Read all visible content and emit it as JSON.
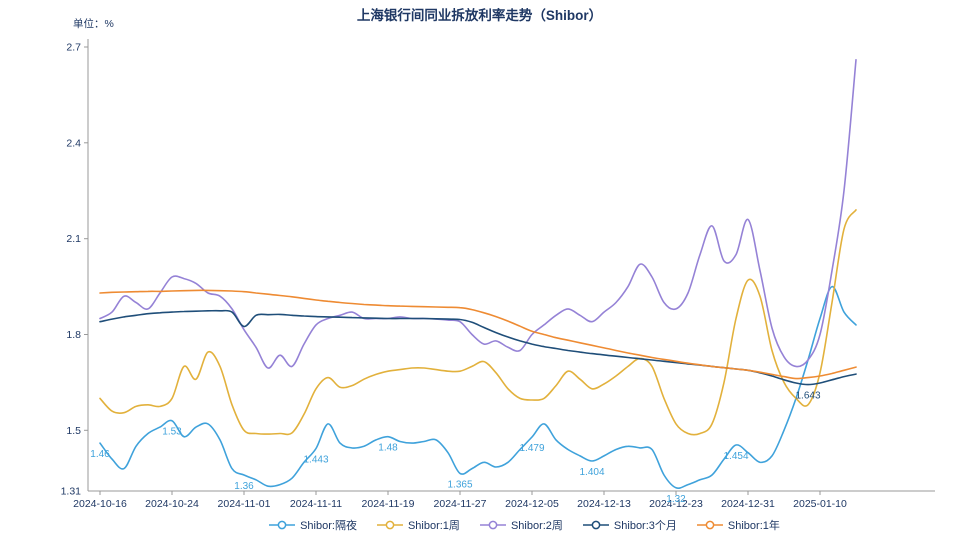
{
  "title": "上海银行间同业拆放利率走势（Shibor）",
  "unit_label": "单位：%",
  "colors": {
    "text": "#1F3864",
    "axis": "#999999",
    "background": "#FFFFFF"
  },
  "chart_data": {
    "type": "line",
    "title": "上海银行间同业拆放利率走势（Shibor）",
    "ylabel": "单位：%",
    "grid": false,
    "legend_position": "bottom",
    "ylim": [
      1.31,
      2.7
    ],
    "y_tick_values": [
      2.7,
      2.4,
      2.1,
      1.8,
      1.5
    ],
    "y_tick_labels": [
      "2.7",
      "2.4",
      "2.1",
      "1.8",
      "1.5"
    ],
    "y_min_label": "1.31",
    "x_tick_every": 6,
    "x_tick_labels": [
      "2024-10-16",
      "2024-10-24",
      "2024-11-01",
      "2024-11-11",
      "2024-11-19",
      "2024-11-27",
      "2024-12-05",
      "2024-12-13",
      "2024-12-23",
      "2024-12-31",
      "2025-01-10"
    ],
    "series": [
      {
        "name": "Shibor:隔夜",
        "color": "#3FA2DB",
        "values": [
          1.46,
          1.41,
          1.38,
          1.45,
          1.49,
          1.51,
          1.53,
          1.48,
          1.51,
          1.52,
          1.47,
          1.38,
          1.36,
          1.345,
          1.325,
          1.33,
          1.35,
          1.4,
          1.443,
          1.52,
          1.46,
          1.445,
          1.45,
          1.47,
          1.48,
          1.465,
          1.46,
          1.465,
          1.47,
          1.43,
          1.365,
          1.38,
          1.4,
          1.385,
          1.4,
          1.44,
          1.479,
          1.52,
          1.47,
          1.44,
          1.42,
          1.404,
          1.42,
          1.44,
          1.45,
          1.445,
          1.44,
          1.36,
          1.32,
          1.33,
          1.345,
          1.36,
          1.41,
          1.454,
          1.43,
          1.4,
          1.42,
          1.5,
          1.6,
          1.72,
          1.85,
          1.95,
          1.87,
          1.83
        ]
      },
      {
        "name": "Shibor:1周",
        "color": "#E2B13C",
        "values": [
          1.6,
          1.56,
          1.555,
          1.575,
          1.58,
          1.575,
          1.6,
          1.7,
          1.66,
          1.745,
          1.7,
          1.58,
          1.5,
          1.49,
          1.488,
          1.49,
          1.492,
          1.55,
          1.63,
          1.665,
          1.635,
          1.64,
          1.66,
          1.675,
          1.685,
          1.69,
          1.695,
          1.695,
          1.69,
          1.685,
          1.685,
          1.7,
          1.715,
          1.68,
          1.63,
          1.6,
          1.595,
          1.6,
          1.64,
          1.685,
          1.66,
          1.63,
          1.645,
          1.67,
          1.7,
          1.725,
          1.7,
          1.6,
          1.52,
          1.49,
          1.49,
          1.52,
          1.65,
          1.85,
          1.97,
          1.92,
          1.75,
          1.65,
          1.6,
          1.58,
          1.68,
          1.9,
          2.13,
          2.19
        ]
      },
      {
        "name": "Shibor:2周",
        "color": "#9582D6",
        "values": [
          1.85,
          1.87,
          1.92,
          1.9,
          1.88,
          1.93,
          1.98,
          1.975,
          1.96,
          1.93,
          1.92,
          1.88,
          1.815,
          1.76,
          1.695,
          1.735,
          1.7,
          1.77,
          1.83,
          1.85,
          1.86,
          1.87,
          1.85,
          1.85,
          1.85,
          1.855,
          1.85,
          1.85,
          1.848,
          1.845,
          1.84,
          1.8,
          1.77,
          1.78,
          1.76,
          1.75,
          1.8,
          1.83,
          1.86,
          1.88,
          1.86,
          1.84,
          1.87,
          1.9,
          1.95,
          2.02,
          1.98,
          1.9,
          1.88,
          1.93,
          2.05,
          2.14,
          2.03,
          2.05,
          2.16,
          2.0,
          1.82,
          1.73,
          1.7,
          1.72,
          1.8,
          2.0,
          2.25,
          2.66
        ]
      },
      {
        "name": "Shibor:3个月",
        "color": "#1F4E79",
        "values": [
          1.84,
          1.848,
          1.855,
          1.86,
          1.865,
          1.868,
          1.87,
          1.872,
          1.873,
          1.874,
          1.874,
          1.87,
          1.825,
          1.86,
          1.862,
          1.863,
          1.86,
          1.858,
          1.856,
          1.855,
          1.854,
          1.853,
          1.852,
          1.851,
          1.85,
          1.85,
          1.85,
          1.85,
          1.849,
          1.848,
          1.847,
          1.838,
          1.822,
          1.806,
          1.792,
          1.78,
          1.77,
          1.762,
          1.756,
          1.75,
          1.745,
          1.74,
          1.736,
          1.732,
          1.728,
          1.724,
          1.72,
          1.716,
          1.712,
          1.708,
          1.704,
          1.7,
          1.696,
          1.692,
          1.688,
          1.68,
          1.67,
          1.658,
          1.648,
          1.643,
          1.648,
          1.658,
          1.668,
          1.676
        ]
      },
      {
        "name": "Shibor:1年",
        "color": "#EE8B33",
        "values": [
          1.93,
          1.932,
          1.933,
          1.934,
          1.935,
          1.935,
          1.936,
          1.937,
          1.938,
          1.938,
          1.937,
          1.936,
          1.934,
          1.93,
          1.926,
          1.922,
          1.918,
          1.913,
          1.908,
          1.904,
          1.9,
          1.897,
          1.894,
          1.892,
          1.89,
          1.889,
          1.888,
          1.887,
          1.886,
          1.885,
          1.884,
          1.878,
          1.868,
          1.856,
          1.842,
          1.826,
          1.81,
          1.8,
          1.79,
          1.782,
          1.774,
          1.766,
          1.758,
          1.75,
          1.742,
          1.735,
          1.728,
          1.722,
          1.716,
          1.71,
          1.705,
          1.7,
          1.696,
          1.692,
          1.688,
          1.682,
          1.675,
          1.668,
          1.662,
          1.665,
          1.67,
          1.678,
          1.688,
          1.698
        ]
      }
    ],
    "annotations": [
      {
        "series": 0,
        "index": 0,
        "text": "1.46"
      },
      {
        "series": 0,
        "index": 6,
        "text": "1.53"
      },
      {
        "series": 0,
        "index": 12,
        "text": "1.36"
      },
      {
        "series": 0,
        "index": 18,
        "text": "1.443"
      },
      {
        "series": 0,
        "index": 24,
        "text": "1.48"
      },
      {
        "series": 0,
        "index": 30,
        "text": "1.365"
      },
      {
        "series": 0,
        "index": 36,
        "text": "1.479"
      },
      {
        "series": 0,
        "index": 41,
        "text": "1.404"
      },
      {
        "series": 0,
        "index": 48,
        "text": "1.32"
      },
      {
        "series": 0,
        "index": 53,
        "text": "1.454"
      },
      {
        "series": 3,
        "index": 59,
        "text": "1.643"
      }
    ],
    "legend": [
      "Shibor:隔夜",
      "Shibor:1周",
      "Shibor:2周",
      "Shibor:3个月",
      "Shibor:1年"
    ]
  }
}
